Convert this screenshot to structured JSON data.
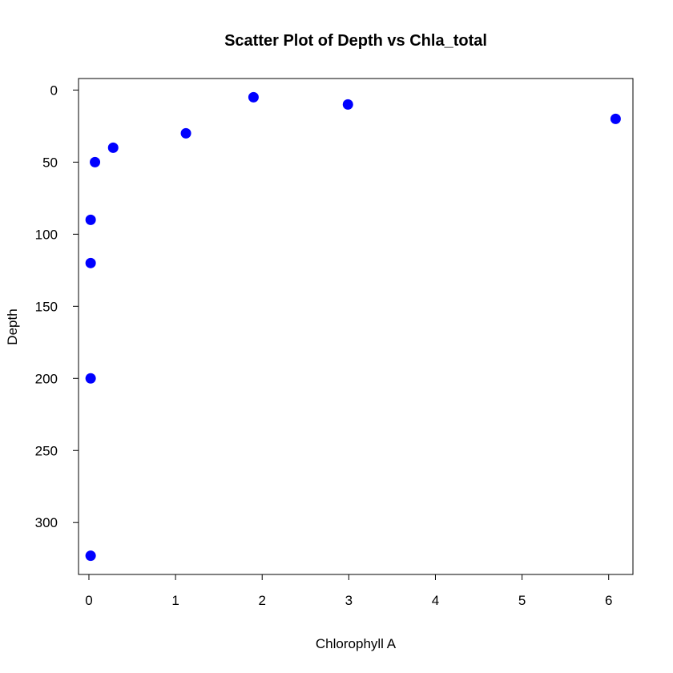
{
  "chart_data": {
    "type": "scatter",
    "title": "Scatter Plot of Depth vs Chla_total",
    "xlabel": "Chlorophyll A",
    "ylabel": "Depth",
    "xlim": [
      -0.12,
      6.28
    ],
    "ylim": [
      336,
      -8
    ],
    "y_reversed": true,
    "x_ticks": [
      0,
      1,
      2,
      3,
      4,
      5,
      6
    ],
    "y_ticks": [
      0,
      50,
      100,
      150,
      200,
      250,
      300
    ],
    "grid": false,
    "legend": "none",
    "marker_color": "#0000ff",
    "points": [
      {
        "x": 1.9,
        "y": 5
      },
      {
        "x": 2.99,
        "y": 10
      },
      {
        "x": 6.08,
        "y": 20
      },
      {
        "x": 1.12,
        "y": 30
      },
      {
        "x": 0.28,
        "y": 40
      },
      {
        "x": 0.07,
        "y": 50
      },
      {
        "x": 0.02,
        "y": 90
      },
      {
        "x": 0.02,
        "y": 120
      },
      {
        "x": 0.02,
        "y": 200
      },
      {
        "x": 0.02,
        "y": 323
      }
    ]
  }
}
